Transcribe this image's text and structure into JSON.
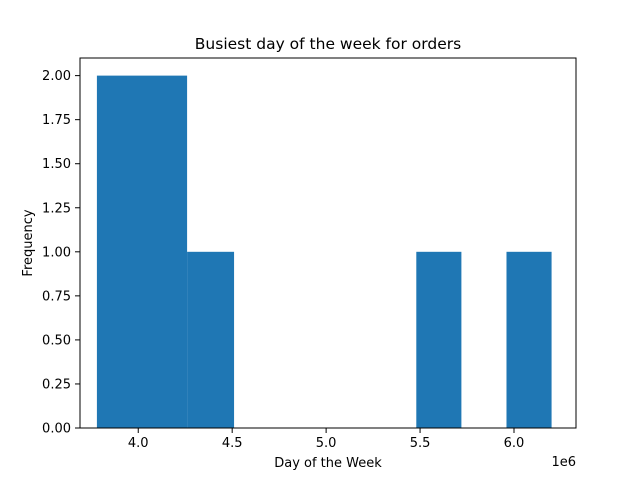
{
  "chart_data": {
    "type": "bar",
    "title": "Busiest day of the week for orders",
    "xlabel": "Day of the Week",
    "ylabel": "Frequency",
    "x_offset_label": "1e6",
    "xlim": [
      3.69,
      6.33
    ],
    "ylim": [
      0,
      2.1
    ],
    "x_ticks": [
      {
        "value": 4.0,
        "label": "4.0"
      },
      {
        "value": 4.5,
        "label": "4.5"
      },
      {
        "value": 5.0,
        "label": "5.0"
      },
      {
        "value": 5.5,
        "label": "5.5"
      },
      {
        "value": 6.0,
        "label": "6.0"
      }
    ],
    "y_ticks": [
      {
        "value": 0.0,
        "label": "0.00"
      },
      {
        "value": 0.25,
        "label": "0.25"
      },
      {
        "value": 0.5,
        "label": "0.50"
      },
      {
        "value": 0.75,
        "label": "0.75"
      },
      {
        "value": 1.0,
        "label": "1.00"
      },
      {
        "value": 1.25,
        "label": "1.25"
      },
      {
        "value": 1.5,
        "label": "1.50"
      },
      {
        "value": 1.75,
        "label": "1.75"
      },
      {
        "value": 2.0,
        "label": "2.00"
      }
    ],
    "bins": [
      {
        "start": 3.78,
        "end": 4.02,
        "value": 2
      },
      {
        "start": 4.02,
        "end": 4.26,
        "value": 2
      },
      {
        "start": 4.26,
        "end": 4.51,
        "value": 1
      },
      {
        "start": 4.51,
        "end": 4.75,
        "value": 0
      },
      {
        "start": 4.75,
        "end": 4.99,
        "value": 0
      },
      {
        "start": 4.99,
        "end": 5.23,
        "value": 0
      },
      {
        "start": 5.23,
        "end": 5.48,
        "value": 0
      },
      {
        "start": 5.48,
        "end": 5.72,
        "value": 1
      },
      {
        "start": 5.72,
        "end": 5.96,
        "value": 0
      },
      {
        "start": 5.96,
        "end": 6.2,
        "value": 1
      }
    ],
    "bar_color": "#1f77b4",
    "grid": false,
    "legend": "none"
  }
}
